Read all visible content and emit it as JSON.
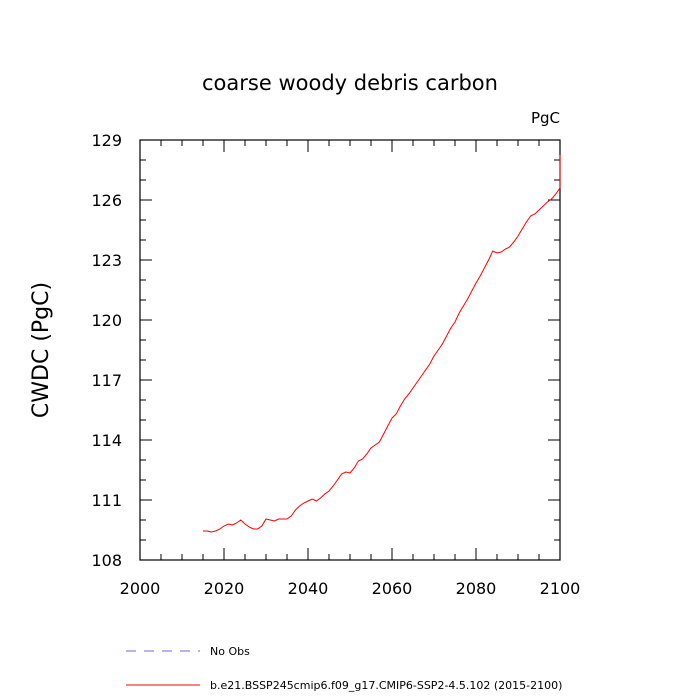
{
  "chart_data": {
    "type": "line",
    "title": "coarse woody debris carbon",
    "units": "PgC",
    "xlabel": "",
    "ylabel": "CWDC  (PgC)",
    "xlim": [
      2000,
      2100
    ],
    "ylim": [
      108,
      129
    ],
    "x_ticks": [
      2000,
      2020,
      2040,
      2060,
      2080,
      2100
    ],
    "y_ticks": [
      108,
      111,
      114,
      117,
      120,
      123,
      126,
      129
    ],
    "x_tick_labels": [
      "2000",
      "2020",
      "2040",
      "2060",
      "2080",
      "2100"
    ],
    "y_tick_labels": [
      "108",
      "111",
      "114",
      "117",
      "120",
      "123",
      "126",
      "129"
    ],
    "grid": false,
    "legend_position": "bottom-left",
    "series": [
      {
        "name": "No Obs",
        "color": "#6a6ae0",
        "dash": "dashed",
        "x": [],
        "y": []
      },
      {
        "name": "b.e21.BSSP245cmip6.f09_g17.CMIP6-SSP2-4.5.102 (2015-2100)",
        "color": "#ff0000",
        "dash": "solid",
        "x": [
          2015,
          2016,
          2017,
          2018,
          2019,
          2020,
          2021,
          2022,
          2023,
          2024,
          2025,
          2026,
          2027,
          2028,
          2029,
          2030,
          2031,
          2032,
          2033,
          2034,
          2035,
          2036,
          2037,
          2038,
          2039,
          2040,
          2041,
          2042,
          2043,
          2044,
          2045,
          2046,
          2047,
          2048,
          2049,
          2050,
          2051,
          2052,
          2053,
          2054,
          2055,
          2056,
          2057,
          2058,
          2059,
          2060,
          2061,
          2062,
          2063,
          2064,
          2065,
          2066,
          2067,
          2068,
          2069,
          2070,
          2071,
          2072,
          2073,
          2074,
          2075,
          2076,
          2077,
          2078,
          2079,
          2080,
          2081,
          2082,
          2083,
          2084,
          2085,
          2086,
          2087,
          2088,
          2089,
          2090,
          2091,
          2092,
          2093,
          2094,
          2095,
          2096,
          2097,
          2098,
          2099,
          2100
        ],
        "y": [
          109.45,
          109.45,
          109.4,
          109.45,
          109.55,
          109.7,
          109.8,
          109.75,
          109.85,
          110.0,
          109.8,
          109.65,
          109.55,
          109.55,
          109.7,
          110.05,
          110.0,
          109.95,
          110.05,
          110.05,
          110.05,
          110.2,
          110.5,
          110.7,
          110.85,
          110.95,
          111.05,
          110.95,
          111.1,
          111.3,
          111.45,
          111.7,
          112.0,
          112.3,
          112.4,
          112.35,
          112.6,
          112.95,
          113.05,
          113.3,
          113.6,
          113.75,
          113.9,
          114.3,
          114.7,
          115.1,
          115.3,
          115.7,
          116.05,
          116.3,
          116.6,
          116.9,
          117.2,
          117.5,
          117.8,
          118.2,
          118.5,
          118.8,
          119.2,
          119.6,
          119.9,
          120.35,
          120.7,
          121.05,
          121.45,
          121.85,
          122.2,
          122.6,
          123.0,
          123.45,
          123.35,
          123.4,
          123.55,
          123.65,
          123.9,
          124.2,
          124.55,
          124.9,
          125.2,
          125.3,
          125.5,
          125.7,
          125.9,
          126.05,
          126.3,
          126.6
        ],
        "note_end": 128.25
      }
    ]
  }
}
